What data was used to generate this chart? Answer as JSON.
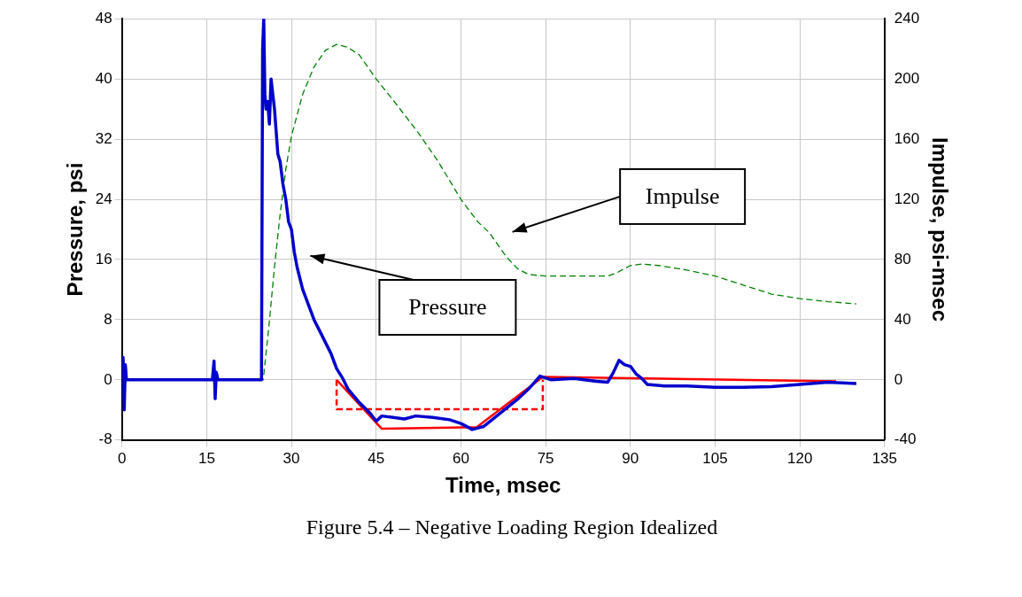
{
  "chart_data": {
    "type": "line",
    "xlabel": "Time, msec",
    "ylabel": "Pressure, psi",
    "y2label": "Impulse, psi-msec",
    "xlim": [
      0,
      135
    ],
    "xticks": [
      0,
      15,
      30,
      45,
      60,
      75,
      90,
      105,
      120,
      135
    ],
    "ylim": [
      -8,
      48
    ],
    "yticks": [
      -8,
      0,
      8,
      16,
      24,
      32,
      40,
      48
    ],
    "y2lim": [
      -40,
      240
    ],
    "y2ticks": [
      -40,
      0,
      40,
      80,
      120,
      160,
      200,
      240
    ],
    "grid": true,
    "legend": false,
    "series": [
      {
        "color": "#0000cc",
        "line_style": "solid",
        "x": [
          0,
          0.2,
          0.4,
          0.6,
          0.8,
          2,
          8,
          16,
          16.3,
          16.5,
          16.7,
          17,
          20,
          24.7,
          24.9,
          25.1,
          25.3,
          25.5,
          25.8,
          26.1,
          26.4,
          26.7,
          27,
          27.3,
          27.6,
          28,
          28.5,
          29,
          29.5,
          30,
          30.5,
          31,
          31.5,
          32,
          33,
          34,
          35,
          36,
          37,
          38,
          39,
          40,
          42,
          44,
          45,
          46,
          48,
          50,
          52,
          55,
          58,
          60,
          62,
          64,
          66,
          68,
          70,
          72,
          74,
          76,
          80,
          84,
          86,
          87,
          88,
          89,
          90,
          91,
          92,
          93,
          96,
          100,
          105,
          110,
          115,
          120,
          125,
          130
        ],
        "values": [
          0,
          3,
          -4,
          2,
          0,
          0,
          0,
          0,
          2.5,
          -2.5,
          1,
          0,
          0,
          0,
          44,
          48,
          38,
          36,
          37,
          34,
          40,
          38,
          36,
          33,
          30,
          29,
          26,
          24,
          21,
          20,
          17,
          15,
          13.5,
          12,
          10,
          8,
          6.5,
          5,
          3.5,
          1.5,
          0.3,
          -1.2,
          -3,
          -4.5,
          -5.5,
          -4.8,
          -5,
          -5.2,
          -4.8,
          -5,
          -5.3,
          -5.8,
          -6.6,
          -6.2,
          -5,
          -3.8,
          -2.6,
          -1.2,
          0.5,
          0,
          0.2,
          -0.2,
          -0.3,
          1,
          2.6,
          2,
          1.8,
          0.8,
          0.2,
          -0.6,
          -0.8,
          -0.8,
          -1,
          -1,
          -0.9,
          -0.6,
          -0.3,
          -0.5
        ]
      },
      {
        "color": "#008000",
        "line_style": "dashed",
        "axis": "y2",
        "x": [
          0,
          25,
          26,
          27,
          28,
          29,
          30,
          32,
          34,
          36,
          38,
          40,
          42,
          45,
          48,
          52.5,
          56,
          60,
          63,
          65,
          68,
          70,
          72,
          75,
          80,
          86,
          87.5,
          90,
          92,
          95,
          100,
          105,
          110,
          115,
          120,
          125,
          130
        ],
        "values": [
          0,
          0,
          35,
          75,
          110,
          140,
          162,
          190,
          208,
          219,
          223,
          221,
          216,
          200,
          186,
          164,
          145,
          120,
          105,
          98,
          82,
          74,
          70,
          69,
          69,
          69,
          71,
          76,
          77,
          76,
          73,
          69,
          63,
          57,
          54,
          52,
          50.5
        ]
      },
      {
        "color": "#ff0000",
        "line_style": "solid",
        "x": [
          38,
          46,
          62.8,
          74.5,
          126.4
        ],
        "values": [
          0,
          -6.5,
          -6.3,
          0.4,
          -0.2
        ]
      },
      {
        "color": "#ff0000",
        "line_style": "dashed",
        "x": [
          38,
          38,
          74.5,
          74.5
        ],
        "values": [
          0,
          -3.9,
          -3.9,
          0
        ]
      }
    ],
    "annotations": [
      "Impulse",
      "Pressure",
      "Figure 5.4 – Negative Loading Region Idealized"
    ]
  }
}
